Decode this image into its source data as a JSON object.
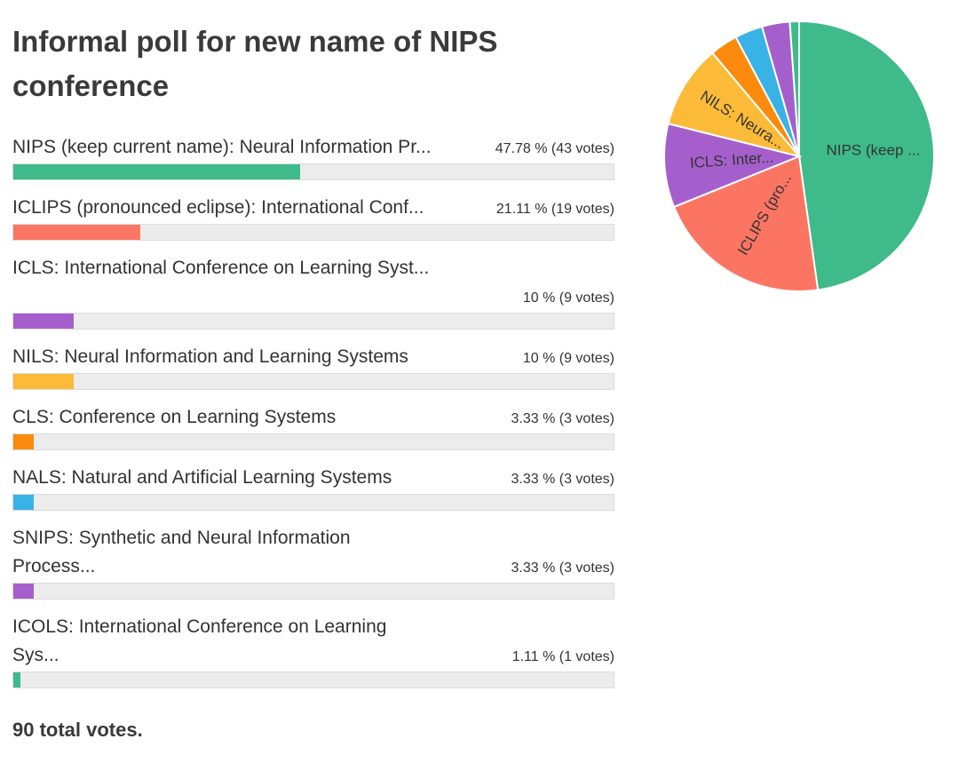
{
  "title": "Informal poll for new name of NIPS conference",
  "total_votes_text": "90 total votes.",
  "options": [
    {
      "label": "NIPS (keep current name): Neural Information Pr...",
      "pct_text": "47.78 % (43 votes)",
      "percent": 47.78,
      "votes": 43,
      "color": "#3fba8a"
    },
    {
      "label": "ICLIPS (pronounced eclipse): International Conf...",
      "pct_text": "21.11 % (19 votes)",
      "percent": 21.11,
      "votes": 19,
      "color": "#fc7563"
    },
    {
      "label": "ICLS: International Conference on Learning Syst...",
      "pct_text": "10 % (9 votes)",
      "percent": 10,
      "votes": 9,
      "color": "#a55fcc"
    },
    {
      "label": "NILS: Neural Information and Learning Systems",
      "pct_text": "10 % (9 votes)",
      "percent": 10,
      "votes": 9,
      "color": "#fbbb38"
    },
    {
      "label": "CLS: Conference on Learning Systems",
      "pct_text": "3.33 % (3 votes)",
      "percent": 3.33,
      "votes": 3,
      "color": "#fc8a0c"
    },
    {
      "label": "NALS: Natural and Artificial Learning Systems",
      "pct_text": "3.33 % (3 votes)",
      "percent": 3.33,
      "votes": 3,
      "color": "#39b3e6"
    },
    {
      "label": "SNIPS: Synthetic and Neural Information Process...",
      "pct_text": "3.33 % (3 votes)",
      "percent": 3.33,
      "votes": 3,
      "color": "#a55fcc"
    },
    {
      "label": "ICOLS: International Conference on Learning Sys...",
      "pct_text": "1.11 % (1 votes)",
      "percent": 1.11,
      "votes": 1,
      "color": "#3fba8a"
    }
  ],
  "chart_data": [
    {
      "type": "bar",
      "orientation": "horizontal",
      "title": "Informal poll for new name of NIPS conference",
      "categories": [
        "NIPS (keep current name): Neural Information Pr...",
        "ICLIPS (pronounced eclipse): International Conf...",
        "ICLS: International Conference on Learning Syst...",
        "NILS: Neural Information and Learning Systems",
        "CLS: Conference on Learning Systems",
        "NALS: Natural and Artificial Learning Systems",
        "SNIPS: Synthetic and Neural Information Process...",
        "ICOLS: International Conference on Learning Sys..."
      ],
      "values": [
        47.78,
        21.11,
        10,
        10,
        3.33,
        3.33,
        3.33,
        1.11
      ],
      "votes": [
        43,
        19,
        9,
        9,
        3,
        3,
        3,
        1
      ],
      "xlim": [
        0,
        100
      ],
      "grid": false,
      "legend": "none"
    },
    {
      "type": "pie",
      "categories": [
        "NIPS",
        "ICLIPS",
        "ICLS",
        "NILS",
        "CLS",
        "NALS",
        "SNIPS",
        "ICOLS"
      ],
      "values": [
        43,
        19,
        9,
        9,
        3,
        3,
        3,
        1
      ],
      "colors": [
        "#3fba8a",
        "#fc7563",
        "#a55fcc",
        "#fbbb38",
        "#fc8a0c",
        "#39b3e6",
        "#a55fcc",
        "#3fba8a"
      ],
      "slice_labels": [
        "NIPS (keep ...",
        "ICLIPS (pro...",
        "ICLS: Inter...",
        "NILS: Neura...",
        "",
        "",
        "",
        ""
      ],
      "legend": "none"
    }
  ]
}
